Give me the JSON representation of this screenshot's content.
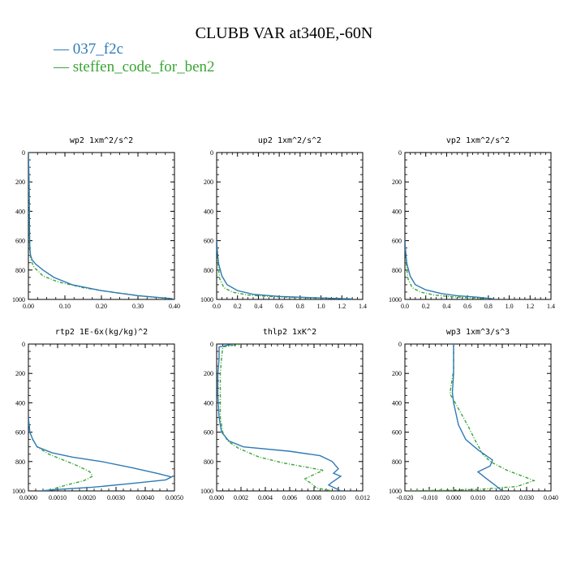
{
  "figure": {
    "title": "CLUBB VAR at340E,-60N",
    "legend": [
      {
        "label": "— 037_f2c",
        "color": "#2f7ab4"
      },
      {
        "label": "— steffen_code_for_ben2",
        "color": "#3aa535"
      }
    ]
  },
  "chart_data": [
    {
      "type": "line",
      "title": "wp2  1xm^2/s^2",
      "xlim": [
        0,
        0.4
      ],
      "xticks": [
        0,
        0.1,
        0.2,
        0.3,
        0.4
      ],
      "xtick_labels": [
        "0.00",
        "0.10",
        "0.20",
        "0.30",
        "0.40"
      ],
      "ylim": [
        0,
        1000
      ],
      "yticks": [
        0,
        200,
        400,
        600,
        800,
        1000
      ],
      "y_inverted": true,
      "series": [
        {
          "name": "037_f2c",
          "color": "#2f7ab4",
          "dashed": false,
          "points": [
            [
              0.0,
              0
            ],
            [
              0.002,
              200
            ],
            [
              0.003,
              500
            ],
            [
              0.004,
              650
            ],
            [
              0.006,
              700
            ],
            [
              0.01,
              730
            ],
            [
              0.02,
              760
            ],
            [
              0.04,
              800
            ],
            [
              0.07,
              850
            ],
            [
              0.12,
              900
            ],
            [
              0.2,
              940
            ],
            [
              0.3,
              975
            ],
            [
              0.395,
              995
            ]
          ]
        },
        {
          "name": "steffen_code_for_ben2",
          "color": "#3aa535",
          "dashed": true,
          "points": [
            [
              0.0,
              0
            ],
            [
              0.001,
              200
            ],
            [
              0.002,
              500
            ],
            [
              0.003,
              650
            ],
            [
              0.005,
              700
            ],
            [
              0.008,
              740
            ],
            [
              0.015,
              780
            ],
            [
              0.04,
              840
            ],
            [
              0.08,
              880
            ],
            [
              0.15,
              920
            ],
            [
              0.24,
              955
            ],
            [
              0.34,
              985
            ],
            [
              0.39,
              995
            ]
          ]
        }
      ]
    },
    {
      "type": "line",
      "title": "up2  1xm^2/s^2",
      "xlim": [
        0,
        1.4
      ],
      "xticks": [
        0,
        0.2,
        0.4,
        0.6,
        0.8,
        1.0,
        1.2,
        1.4
      ],
      "xtick_labels": [
        "0.0",
        "0.2",
        "0.4",
        "0.6",
        "0.8",
        "1.0",
        "1.2",
        "1.4"
      ],
      "ylim": [
        0,
        1000
      ],
      "yticks": [
        0,
        200,
        400,
        600,
        800,
        1000
      ],
      "y_inverted": true,
      "series": [
        {
          "name": "037_f2c",
          "color": "#2f7ab4",
          "dashed": false,
          "points": [
            [
              0.0,
              600
            ],
            [
              0.01,
              700
            ],
            [
              0.02,
              760
            ],
            [
              0.05,
              840
            ],
            [
              0.1,
              900
            ],
            [
              0.2,
              940
            ],
            [
              0.35,
              965
            ],
            [
              0.6,
              980
            ],
            [
              1.0,
              990
            ],
            [
              1.3,
              996
            ]
          ]
        },
        {
          "name": "steffen_code_for_ben2",
          "color": "#3aa535",
          "dashed": true,
          "points": [
            [
              0.0,
              600
            ],
            [
              0.008,
              700
            ],
            [
              0.015,
              780
            ],
            [
              0.03,
              860
            ],
            [
              0.07,
              920
            ],
            [
              0.15,
              950
            ],
            [
              0.3,
              970
            ],
            [
              0.55,
              982
            ],
            [
              0.9,
              990
            ],
            [
              1.25,
              996
            ]
          ]
        }
      ]
    },
    {
      "type": "line",
      "title": "vp2  1xm^2/s^2",
      "xlim": [
        0,
        1.4
      ],
      "xticks": [
        0,
        0.2,
        0.4,
        0.6,
        0.8,
        1.0,
        1.2,
        1.4
      ],
      "xtick_labels": [
        "0.0",
        "0.2",
        "0.4",
        "0.6",
        "0.8",
        "1.0",
        "1.2",
        "1.4"
      ],
      "ylim": [
        0,
        1000
      ],
      "yticks": [
        0,
        200,
        400,
        600,
        800,
        1000
      ],
      "y_inverted": true,
      "series": [
        {
          "name": "037_f2c",
          "color": "#2f7ab4",
          "dashed": false,
          "points": [
            [
              0.0,
              600
            ],
            [
              0.01,
              700
            ],
            [
              0.02,
              760
            ],
            [
              0.05,
              840
            ],
            [
              0.1,
              900
            ],
            [
              0.2,
              935
            ],
            [
              0.35,
              960
            ],
            [
              0.5,
              975
            ],
            [
              0.7,
              985
            ],
            [
              0.85,
              996
            ]
          ]
        },
        {
          "name": "steffen_code_for_ben2",
          "color": "#3aa535",
          "dashed": true,
          "points": [
            [
              0.0,
              600
            ],
            [
              0.008,
              700
            ],
            [
              0.015,
              780
            ],
            [
              0.03,
              860
            ],
            [
              0.07,
              920
            ],
            [
              0.15,
              950
            ],
            [
              0.28,
              970
            ],
            [
              0.45,
              982
            ],
            [
              0.65,
              990
            ],
            [
              0.8,
              996
            ]
          ]
        }
      ]
    },
    {
      "type": "line",
      "title": "rtp2  1E-6x(kg/kg)^2",
      "xlim": [
        0,
        0.005
      ],
      "xticks": [
        0,
        0.001,
        0.002,
        0.003,
        0.004,
        0.005
      ],
      "xtick_labels": [
        "0.0000",
        "0.0010",
        "0.0020",
        "0.0030",
        "0.0040",
        "0.0050"
      ],
      "ylim": [
        0,
        1000
      ],
      "yticks": [
        0,
        200,
        400,
        600,
        800,
        1000
      ],
      "y_inverted": true,
      "series": [
        {
          "name": "037_f2c",
          "color": "#2f7ab4",
          "dashed": false,
          "points": [
            [
              0.0,
              500
            ],
            [
              5e-05,
              600
            ],
            [
              0.00015,
              650
            ],
            [
              0.0003,
              700
            ],
            [
              0.0008,
              740
            ],
            [
              0.0015,
              770
            ],
            [
              0.0025,
              800
            ],
            [
              0.0035,
              840
            ],
            [
              0.0044,
              880
            ],
            [
              0.0049,
              905
            ],
            [
              0.0047,
              925
            ],
            [
              0.0035,
              950
            ],
            [
              0.0022,
              975
            ],
            [
              0.001,
              990
            ],
            [
              0.0004,
              1000
            ]
          ]
        },
        {
          "name": "steffen_code_for_ben2",
          "color": "#3aa535",
          "dashed": true,
          "points": [
            [
              0.0,
              500
            ],
            [
              5e-05,
              600
            ],
            [
              0.00015,
              650
            ],
            [
              0.0003,
              700
            ],
            [
              0.0007,
              750
            ],
            [
              0.0012,
              790
            ],
            [
              0.0017,
              830
            ],
            [
              0.0021,
              870
            ],
            [
              0.0022,
              900
            ],
            [
              0.0019,
              930
            ],
            [
              0.0013,
              960
            ],
            [
              0.0008,
              990
            ],
            [
              0.0006,
              1000
            ]
          ]
        }
      ]
    },
    {
      "type": "line",
      "title": "thlp2  1xK^2",
      "xlim": [
        0,
        0.012
      ],
      "xticks": [
        0,
        0.002,
        0.004,
        0.006,
        0.008,
        0.01,
        0.012
      ],
      "xtick_labels": [
        "0.000",
        "0.002",
        "0.004",
        "0.006",
        "0.008",
        "0.010",
        "0.012"
      ],
      "ylim": [
        0,
        1000
      ],
      "yticks": [
        0,
        200,
        400,
        600,
        800,
        1000
      ],
      "y_inverted": true,
      "series": [
        {
          "name": "037_f2c",
          "color": "#2f7ab4",
          "dashed": false,
          "points": [
            [
              0.0014,
              0
            ],
            [
              0.0002,
              20
            ],
            [
              0.0002,
              100
            ],
            [
              0.0001,
              200
            ],
            [
              0.0001,
              350
            ],
            [
              0.0002,
              500
            ],
            [
              0.0004,
              600
            ],
            [
              0.001,
              660
            ],
            [
              0.0022,
              700
            ],
            [
              0.006,
              730
            ],
            [
              0.0085,
              760
            ],
            [
              0.0095,
              800
            ],
            [
              0.01,
              850
            ],
            [
              0.0096,
              880
            ],
            [
              0.0102,
              900
            ],
            [
              0.0095,
              940
            ],
            [
              0.0092,
              960
            ],
            [
              0.0102,
              1000
            ]
          ]
        },
        {
          "name": "steffen_code_for_ben2",
          "color": "#3aa535",
          "dashed": true,
          "points": [
            [
              0.002,
              0
            ],
            [
              0.0005,
              20
            ],
            [
              0.0004,
              100
            ],
            [
              0.0003,
              200
            ],
            [
              0.0003,
              350
            ],
            [
              0.0003,
              500
            ],
            [
              0.0005,
              600
            ],
            [
              0.0009,
              660
            ],
            [
              0.0018,
              710
            ],
            [
              0.0035,
              770
            ],
            [
              0.0055,
              810
            ],
            [
              0.0075,
              840
            ],
            [
              0.0088,
              860
            ],
            [
              0.0082,
              880
            ],
            [
              0.0072,
              920
            ],
            [
              0.0078,
              950
            ],
            [
              0.0082,
              980
            ],
            [
              0.0095,
              1000
            ]
          ]
        }
      ]
    },
    {
      "type": "line",
      "title": "wp3  1xm^3/s^3",
      "xlim": [
        -0.02,
        0.04
      ],
      "xticks": [
        -0.02,
        -0.01,
        0,
        0.01,
        0.02,
        0.03,
        0.04
      ],
      "xtick_labels": [
        "-0.020",
        "-0.010",
        "0.000",
        "0.010",
        "0.020",
        "0.030",
        "0.040"
      ],
      "ylim": [
        0,
        1000
      ],
      "yticks": [
        0,
        200,
        400,
        600,
        800,
        1000
      ],
      "y_inverted": true,
      "series": [
        {
          "name": "037_f2c",
          "color": "#2f7ab4",
          "dashed": false,
          "points": [
            [
              0.0,
              0
            ],
            [
              0.0,
              200
            ],
            [
              -0.0005,
              330
            ],
            [
              0.0,
              400
            ],
            [
              0.002,
              550
            ],
            [
              0.005,
              650
            ],
            [
              0.01,
              720
            ],
            [
              0.016,
              790
            ],
            [
              0.015,
              830
            ],
            [
              0.01,
              870
            ],
            [
              0.013,
              910
            ],
            [
              0.017,
              960
            ],
            [
              0.02,
              1000
            ]
          ]
        },
        {
          "name": "steffen_code_for_ben2",
          "color": "#3aa535",
          "dashed": true,
          "points": [
            [
              0.0,
              0
            ],
            [
              0.0,
              180
            ],
            [
              -0.001,
              280
            ],
            [
              -0.0015,
              340
            ],
            [
              0.0,
              380
            ],
            [
              0.003,
              470
            ],
            [
              0.006,
              560
            ],
            [
              0.009,
              660
            ],
            [
              0.012,
              750
            ],
            [
              0.015,
              800
            ],
            [
              0.022,
              860
            ],
            [
              0.03,
              910
            ],
            [
              0.033,
              930
            ],
            [
              0.026,
              970
            ],
            [
              0.01,
              990
            ],
            [
              -0.019,
              1000
            ]
          ]
        }
      ]
    }
  ]
}
